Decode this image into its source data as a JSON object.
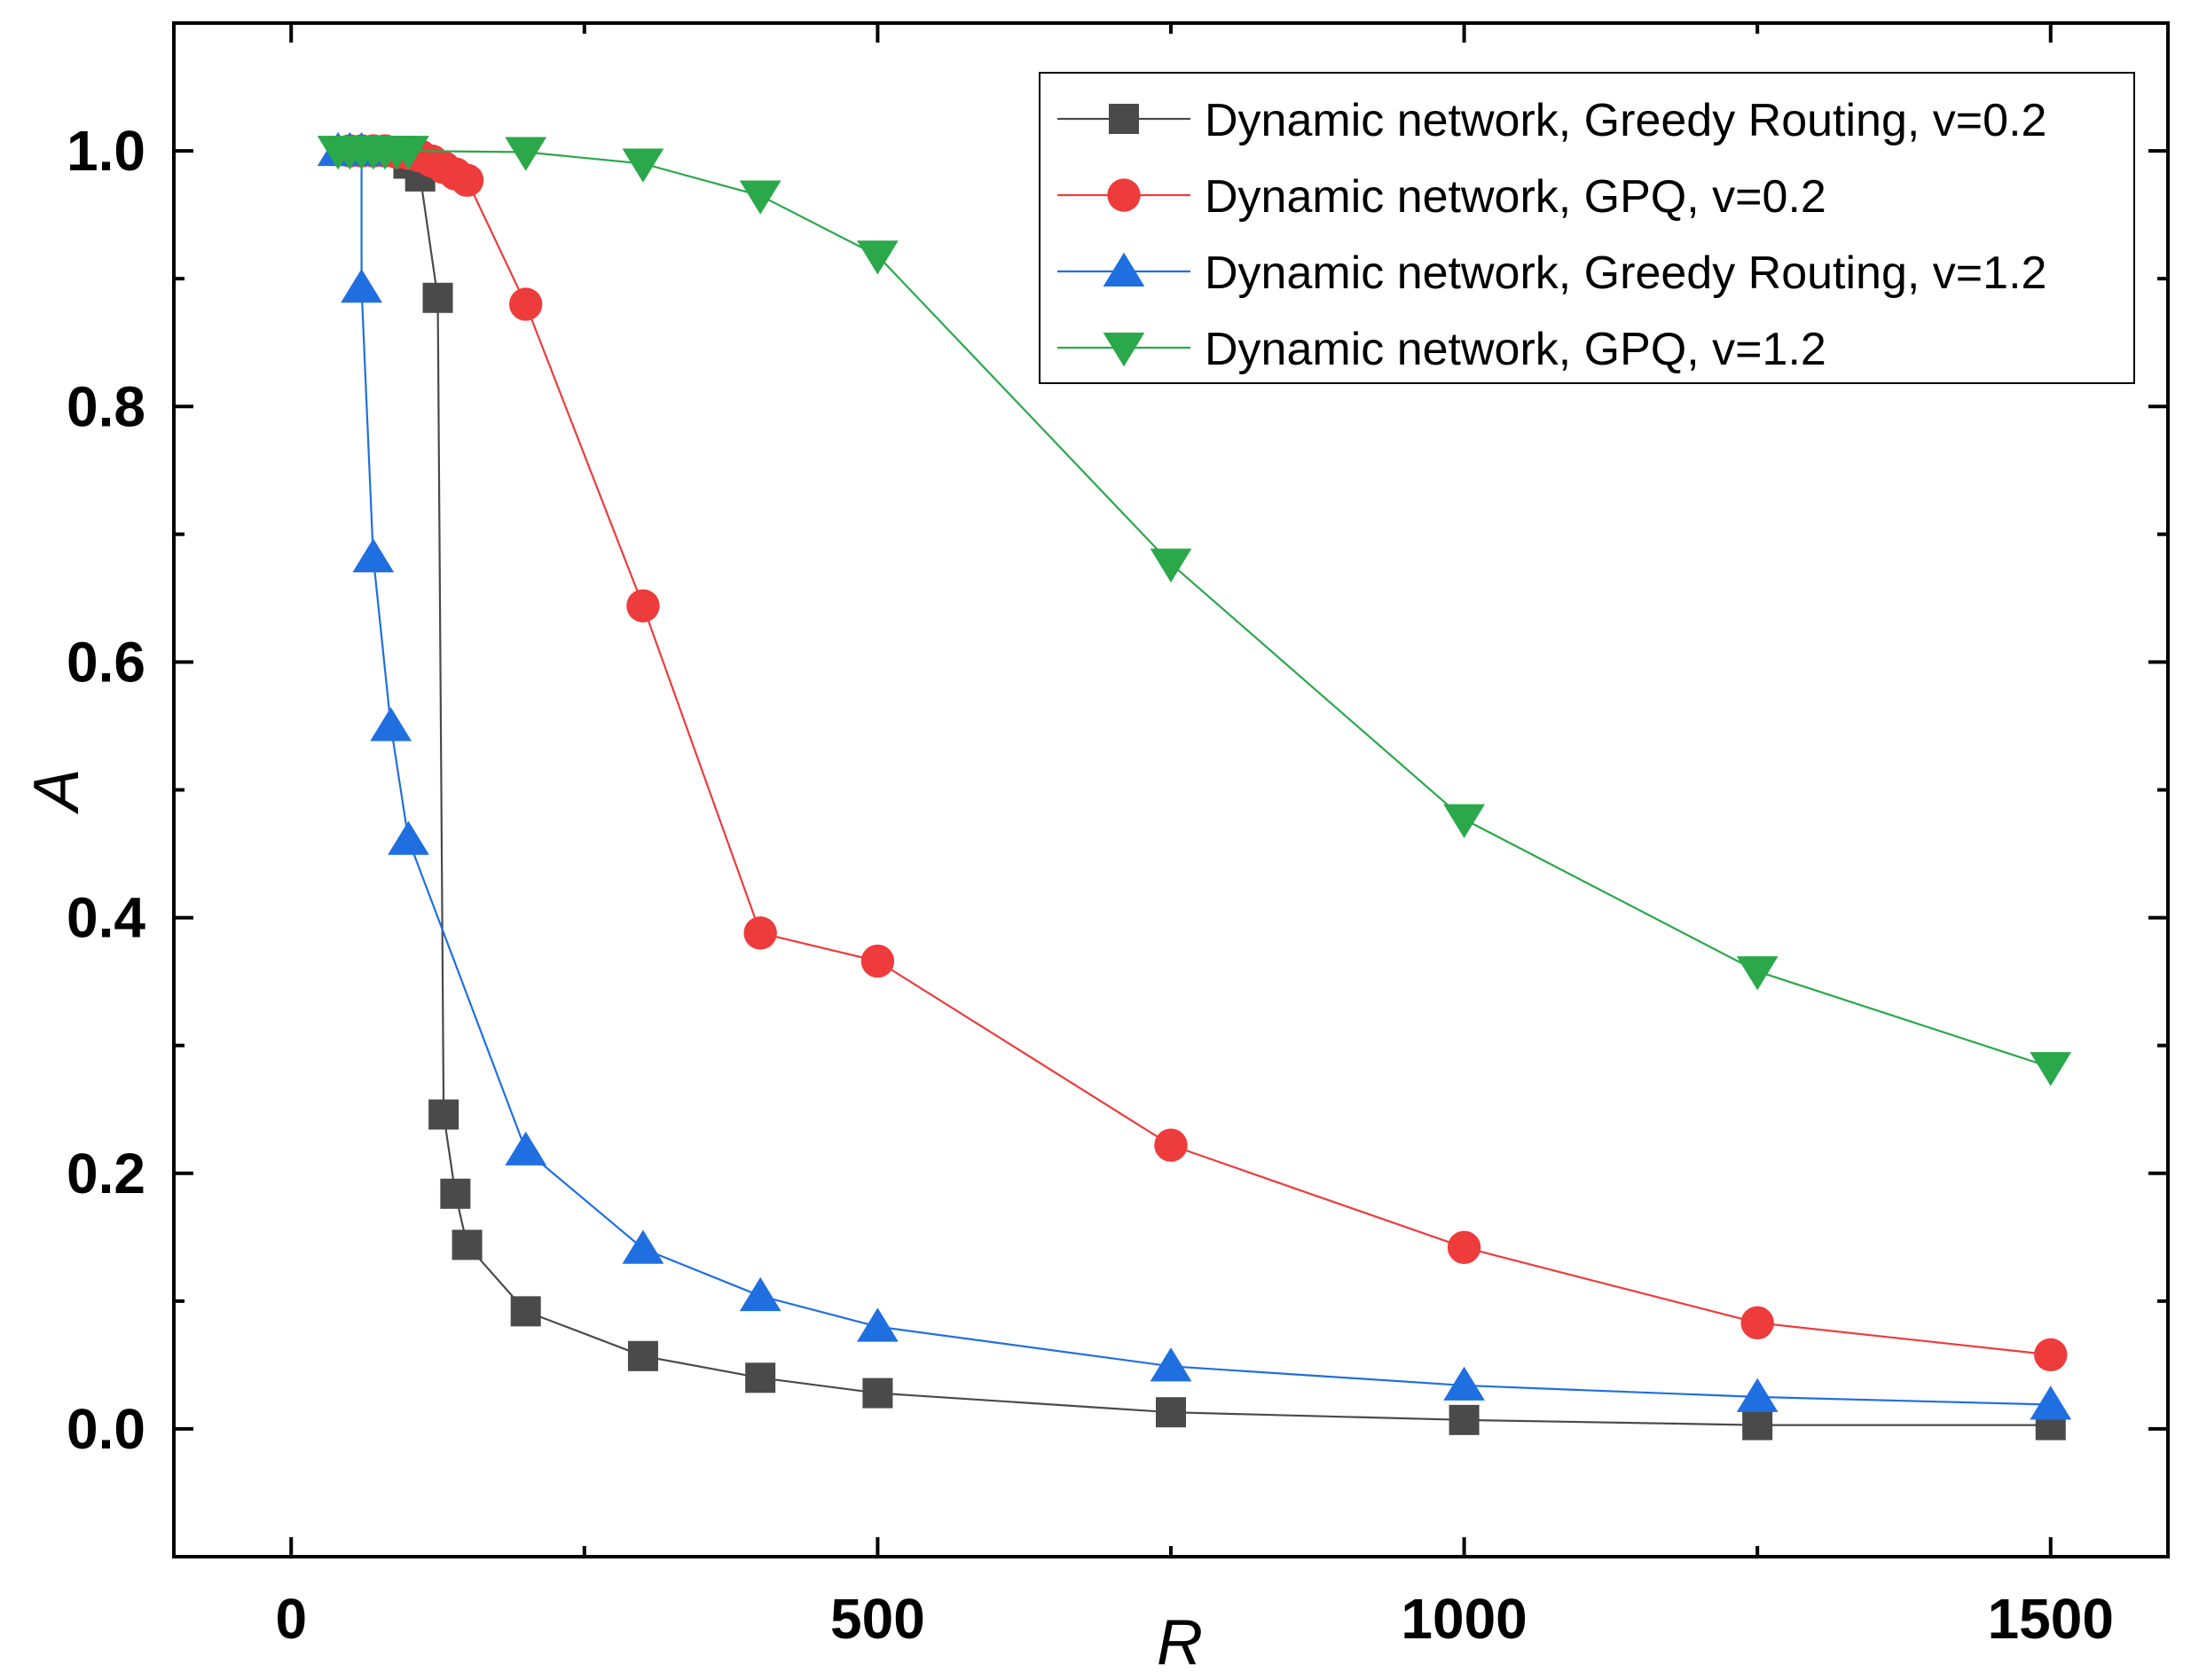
{
  "chart_data": {
    "type": "line",
    "title": "",
    "xlabel": "R",
    "ylabel": "A",
    "xlim": [
      -100,
      1600
    ],
    "ylim": [
      -0.1,
      1.1
    ],
    "x_ticks": [
      0,
      500,
      1000,
      1500
    ],
    "x_tick_labels": [
      "0",
      "500",
      "1000",
      "1500"
    ],
    "x_minor_ticks": [
      250,
      750,
      1250
    ],
    "y_ticks": [
      0.0,
      0.2,
      0.4,
      0.6,
      0.8,
      1.0
    ],
    "y_tick_labels": [
      "0.0",
      "0.2",
      "0.4",
      "0.6",
      "0.8",
      "1.0"
    ],
    "y_minor_ticks": [
      0.1,
      0.3,
      0.5,
      0.7,
      0.9
    ],
    "grid": false,
    "legend_position": "top-right",
    "series": [
      {
        "name": "Dynamic network, Greedy Routing, v=0.2",
        "color": "#4a4a4a",
        "marker": "square",
        "x": [
          50,
          60,
          70,
          80,
          100,
          110,
          125,
          130,
          140,
          150,
          200,
          300,
          400,
          500,
          750,
          1000,
          1250,
          1500
        ],
        "y": [
          1.0,
          1.0,
          1.0,
          1.0,
          0.99,
          0.98,
          0.885,
          0.246,
          0.184,
          0.144,
          0.092,
          0.057,
          0.04,
          0.028,
          0.013,
          0.007,
          0.003,
          0.003
        ]
      },
      {
        "name": "Dynamic network, GPQ, v=0.2",
        "color": "#ee3b3b",
        "marker": "circle",
        "x": [
          50,
          60,
          70,
          80,
          90,
          100,
          110,
          120,
          130,
          140,
          150,
          200,
          300,
          400,
          500,
          750,
          1000,
          1250,
          1500
        ],
        "y": [
          1.0,
          1.0,
          1.0,
          1.0,
          0.999,
          0.998,
          0.996,
          0.992,
          0.987,
          0.982,
          0.977,
          0.88,
          0.644,
          0.388,
          0.366,
          0.222,
          0.142,
          0.083,
          0.058
        ]
      },
      {
        "name": "Dynamic network, Greedy Routing, v=1.2",
        "color": "#1f6fe0",
        "marker": "triangle-up",
        "x": [
          40,
          50,
          60,
          60,
          70,
          85,
          100,
          200,
          300,
          400,
          500,
          750,
          1000,
          1250,
          1500
        ],
        "y": [
          1.0,
          1.0,
          1.0,
          0.893,
          0.682,
          0.55,
          0.461,
          0.218,
          0.141,
          0.104,
          0.08,
          0.049,
          0.034,
          0.025,
          0.019
        ]
      },
      {
        "name": "Dynamic network, GPQ, v=1.2",
        "color": "#2aa84a",
        "marker": "triangle-down",
        "x": [
          40,
          50,
          60,
          70,
          80,
          90,
          100,
          200,
          300,
          400,
          500,
          750,
          1000,
          1250,
          1500
        ],
        "y": [
          1.0,
          1.0,
          1.0,
          1.0,
          1.0,
          1.0,
          1.0,
          0.999,
          0.99,
          0.965,
          0.918,
          0.677,
          0.477,
          0.358,
          0.283
        ]
      }
    ]
  }
}
